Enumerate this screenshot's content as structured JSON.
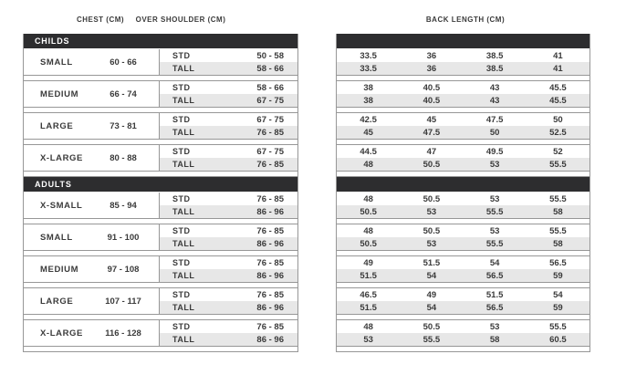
{
  "headers": {
    "chest": "CHEST (CM)",
    "over_shoulder": "OVER SHOULDER (CM)",
    "back_length": "BACK LENGTH (CM)"
  },
  "fit_labels": {
    "std": "STD",
    "tall": "TALL"
  },
  "colors": {
    "section_bar": "#2d2d2f",
    "section_bar_text": "#ffffff",
    "tall_row_bg": "#e7e7e7",
    "border": "#979797",
    "text": "#3b3b3b"
  },
  "sections": [
    {
      "id": "childs",
      "label": "CHILDS",
      "rows": [
        {
          "size": "SMALL",
          "chest": "60 - 66",
          "shoulder_std": "50 - 58",
          "shoulder_tall": "58 - 66",
          "back_std": [
            "33.5",
            "36",
            "38.5",
            "41"
          ],
          "back_tall": [
            "33.5",
            "36",
            "38.5",
            "41"
          ]
        },
        {
          "size": "MEDIUM",
          "chest": "66 - 74",
          "shoulder_std": "58 - 66",
          "shoulder_tall": "67 - 75",
          "back_std": [
            "38",
            "40.5",
            "43",
            "45.5"
          ],
          "back_tall": [
            "38",
            "40.5",
            "43",
            "45.5"
          ]
        },
        {
          "size": "LARGE",
          "chest": "73 - 81",
          "shoulder_std": "67 - 75",
          "shoulder_tall": "76 - 85",
          "back_std": [
            "42.5",
            "45",
            "47.5",
            "50"
          ],
          "back_tall": [
            "45",
            "47.5",
            "50",
            "52.5"
          ]
        },
        {
          "size": "X-LARGE",
          "chest": "80 - 88",
          "shoulder_std": "67 - 75",
          "shoulder_tall": "76 - 85",
          "back_std": [
            "44.5",
            "47",
            "49.5",
            "52"
          ],
          "back_tall": [
            "48",
            "50.5",
            "53",
            "55.5"
          ]
        }
      ]
    },
    {
      "id": "adults",
      "label": "ADULTS",
      "rows": [
        {
          "size": "X-SMALL",
          "chest": "85 - 94",
          "shoulder_std": "76 - 85",
          "shoulder_tall": "86 - 96",
          "back_std": [
            "48",
            "50.5",
            "53",
            "55.5"
          ],
          "back_tall": [
            "50.5",
            "53",
            "55.5",
            "58"
          ]
        },
        {
          "size": "SMALL",
          "chest": "91 - 100",
          "shoulder_std": "76 - 85",
          "shoulder_tall": "86 - 96",
          "back_std": [
            "48",
            "50.5",
            "53",
            "55.5"
          ],
          "back_tall": [
            "50.5",
            "53",
            "55.5",
            "58"
          ]
        },
        {
          "size": "MEDIUM",
          "chest": "97 - 108",
          "shoulder_std": "76 - 85",
          "shoulder_tall": "86 - 96",
          "back_std": [
            "49",
            "51.5",
            "54",
            "56.5"
          ],
          "back_tall": [
            "51.5",
            "54",
            "56.5",
            "59"
          ]
        },
        {
          "size": "LARGE",
          "chest": "107 - 117",
          "shoulder_std": "76 - 85",
          "shoulder_tall": "86 - 96",
          "back_std": [
            "46.5",
            "49",
            "51.5",
            "54"
          ],
          "back_tall": [
            "51.5",
            "54",
            "56.5",
            "59"
          ]
        },
        {
          "size": "X-LARGE",
          "chest": "116 - 128",
          "shoulder_std": "76 - 85",
          "shoulder_tall": "86 - 96",
          "back_std": [
            "48",
            "50.5",
            "53",
            "55.5"
          ],
          "back_tall": [
            "53",
            "55.5",
            "58",
            "60.5"
          ]
        }
      ]
    }
  ]
}
